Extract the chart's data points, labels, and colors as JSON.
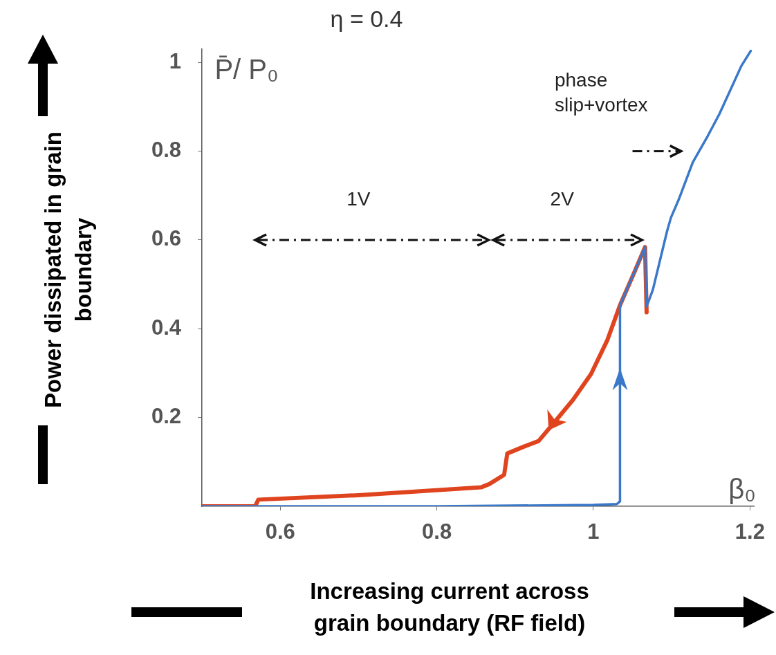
{
  "chart_data": {
    "type": "line",
    "title": "η = 0.4",
    "xlabel": "Increasing current across grain boundary (RF field)",
    "ylabel": "Power dissipated in grain boundary",
    "xlim": [
      0.5,
      1.205
    ],
    "xticks": [
      0.6,
      0.8,
      1,
      1.2
    ],
    "ylim": [
      0,
      1.03
    ],
    "yticks": [
      0.2,
      0.4,
      0.6,
      0.8,
      1
    ],
    "grid": false,
    "legend": false,
    "marker": "none",
    "line_style": "solid",
    "series": [
      {
        "color": "#3a78c9",
        "x": [
          0.5,
          0.8,
          1.0,
          1.03,
          1.034,
          1.034,
          1.053,
          1.066,
          1.068,
          1.076,
          1.094,
          1.099,
          1.109,
          1.127,
          1.146,
          1.161,
          1.189,
          1.201
        ],
        "values": [
          0,
          0,
          0.003,
          0.005,
          0.011,
          0.453,
          0.53,
          0.584,
          0.45,
          0.488,
          0.619,
          0.65,
          0.691,
          0.775,
          0.834,
          0.884,
          0.992,
          1.026
        ]
      },
      {
        "color": "#e0441f",
        "x": [
          0.5,
          0.568,
          0.572,
          0.7,
          0.857,
          0.867,
          0.886,
          0.89,
          0.912,
          0.93,
          0.95,
          0.974,
          0.997,
          1.018,
          1.034,
          1.053,
          1.066,
          1.068
        ],
        "values": [
          0,
          0,
          0.015,
          0.025,
          0.043,
          0.05,
          0.071,
          0.119,
          0.135,
          0.147,
          0.189,
          0.24,
          0.298,
          0.375,
          0.453,
          0.53,
          0.584,
          0.437
        ]
      }
    ],
    "annotations": [
      "P̄/ P₀",
      "β₀",
      "1V",
      "2V",
      "phase slip+vortex"
    ]
  }
}
